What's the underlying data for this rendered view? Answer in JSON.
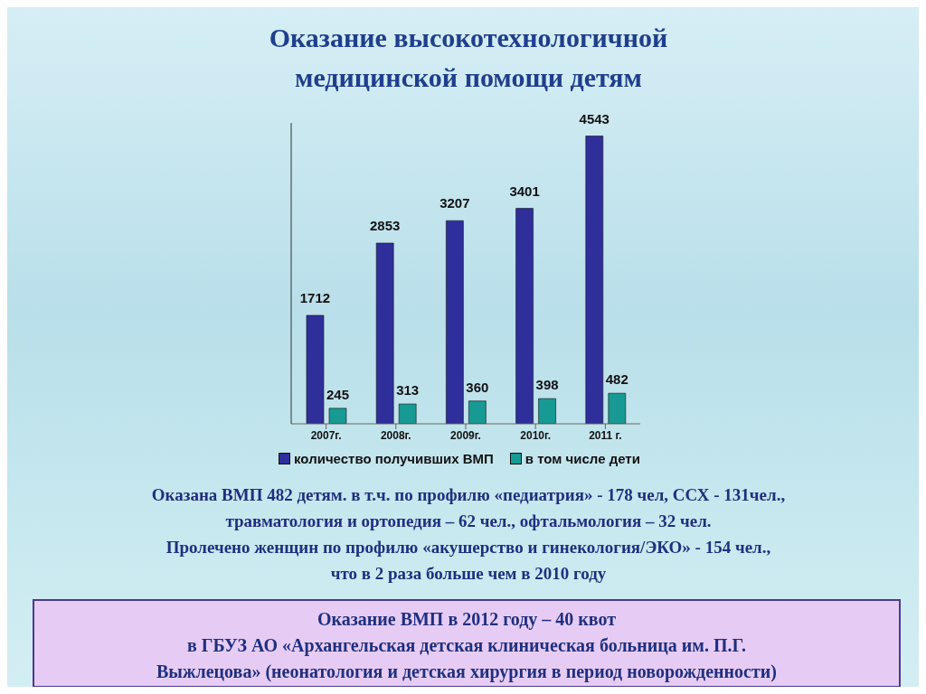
{
  "chart_data": {
    "type": "bar",
    "title": "Оказание высокотехнологичной медицинской помощи детям",
    "categories": [
      "2007г.",
      "2008г.",
      "2009г.",
      "2010г.",
      "2011 г."
    ],
    "series": [
      {
        "name": "количество получивших ВМП",
        "color": "#2f2f9c",
        "values": [
          1712,
          2853,
          3207,
          3401,
          4543
        ]
      },
      {
        "name": "в том числе дети",
        "color": "#179a94",
        "values": [
          245,
          313,
          360,
          398,
          482
        ]
      }
    ],
    "legend": "bottom",
    "data_labels": true,
    "tick_labels": "x",
    "annotations": [
      "Оказана ВМП 482 детям. в т.ч. по профилю «педиатрия» - 178 чел,  ССХ - 131чел.,",
      "травматология и ортопедия – 62 чел., офтальмология – 32 чел.",
      "Пролечено женщин по профилю «акушерство и гинекология/ЭКО» - 154 чел.,",
      "что в 2 раза больше чем в 2010 году",
      "Оказание ВМП в 2012 году – 40 квот",
      "в ГБУЗ АО «Архангельская детская клиническая больница им. П.Г.",
      "Выжлецова» (неонатология и детская хирургия в период новорожденности)"
    ]
  }
}
